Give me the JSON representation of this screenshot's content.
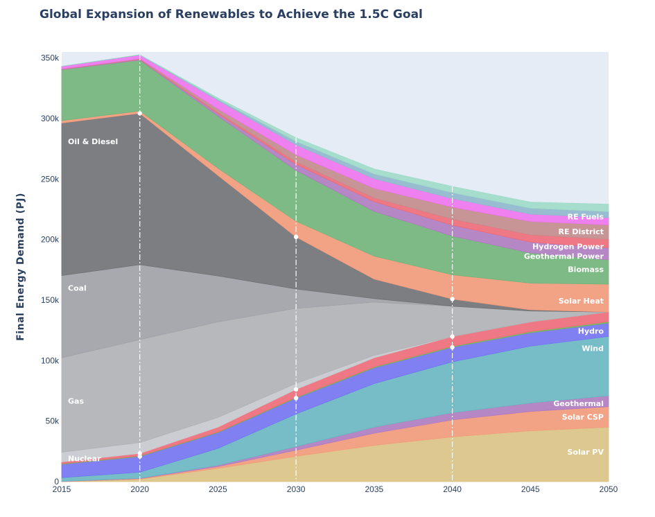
{
  "chart_data": {
    "type": "area",
    "title": "Global Expansion of Renewables to Achieve the 1.5C Goal",
    "xlabel": "",
    "ylabel": "Final Energy Demand (PJ)",
    "x": [
      2015,
      2020,
      2025,
      2030,
      2035,
      2040,
      2045,
      2050
    ],
    "ylim": [
      0,
      355000
    ],
    "xlim": [
      2015,
      2050
    ],
    "y_ticks": [
      0,
      50000,
      100000,
      150000,
      200000,
      250000,
      300000,
      350000
    ],
    "y_tick_labels": [
      "0",
      "50k",
      "100k",
      "150k",
      "200k",
      "250k",
      "300k",
      "350k"
    ],
    "x_ticks": [
      2015,
      2020,
      2025,
      2030,
      2035,
      2040,
      2045,
      2050
    ],
    "x_tick_labels": [
      "2015",
      "2020",
      "2025",
      "2030",
      "2035",
      "2040",
      "2045",
      "2050"
    ],
    "marker_years": [
      2020,
      2030,
      2040
    ],
    "stacked": true,
    "background": "#e5ecf6",
    "series": [
      {
        "name": "Solar PV",
        "color": "#dcc484",
        "values": [
          0,
          2000,
          11000,
          21000,
          30000,
          37000,
          42000,
          45000
        ]
      },
      {
        "name": "Solar CSP",
        "color": "#f39b7a",
        "values": [
          200,
          500,
          1500,
          5000,
          10000,
          14000,
          16000,
          17000
        ]
      },
      {
        "name": "Geothermal",
        "color": "#b07cc0",
        "values": [
          100,
          300,
          1000,
          3000,
          5000,
          6000,
          7000,
          9000
        ]
      },
      {
        "name": "Wind",
        "color": "#6ab8c2",
        "values": [
          3000,
          5000,
          14000,
          27000,
          36000,
          42000,
          47000,
          49000
        ]
      },
      {
        "name": "Hydro",
        "color": "#7474f2",
        "values": [
          11000,
          13000,
          13000,
          13000,
          13000,
          12000,
          11000,
          11000
        ]
      },
      {
        "name": "",
        "color": "#7ab060",
        "values": [
          500,
          500,
          500,
          700,
          800,
          900,
          1000,
          1200
        ]
      },
      {
        "name": "",
        "color": "#ee6c78",
        "values": [
          1500,
          2000,
          4000,
          6500,
          7500,
          8000,
          8000,
          8000
        ]
      },
      {
        "name": "Nuclear",
        "color": "#c8cace",
        "values": [
          8000,
          9000,
          8000,
          5000,
          2000,
          0,
          0,
          0
        ]
      },
      {
        "name": "Gas",
        "color": "#b0b2b6",
        "values": [
          78000,
          85000,
          79000,
          62000,
          44000,
          25000,
          9000,
          0
        ]
      },
      {
        "name": "Coal",
        "color": "#a0a2a6",
        "values": [
          68000,
          62000,
          38000,
          16000,
          3000,
          0,
          0,
          0
        ]
      },
      {
        "name": "Oil & Diesel",
        "color": "#707276",
        "values": [
          126000,
          125000,
          83000,
          43000,
          16000,
          6000,
          1000,
          0
        ]
      },
      {
        "name": "Solar Heat",
        "color": "#f39b7a",
        "values": [
          2000,
          2000,
          6000,
          13000,
          19000,
          20000,
          22000,
          23000
        ]
      },
      {
        "name": "Biomass",
        "color": "#72b57a",
        "values": [
          42000,
          42000,
          43000,
          42000,
          37000,
          32000,
          25000,
          20000
        ]
      },
      {
        "name": "Geothermal Power",
        "color": "#b07cc0",
        "values": [
          300,
          500,
          2000,
          5000,
          8000,
          9000,
          9000,
          10000
        ]
      },
      {
        "name": "Hydrogen Power",
        "color": "#ee6c78",
        "values": [
          200,
          300,
          1000,
          2000,
          3000,
          5000,
          6000,
          7000
        ]
      },
      {
        "name": "RE District",
        "color": "#c48c8c",
        "values": [
          300,
          400,
          3000,
          6000,
          8000,
          10000,
          11000,
          12000
        ]
      },
      {
        "name": "",
        "color": "#f074f0",
        "values": [
          2000,
          3000,
          7000,
          8000,
          8000,
          7000,
          6000,
          6000
        ]
      },
      {
        "name": "RE Fuels",
        "color": "#90b8cc",
        "values": [
          100,
          200,
          1000,
          3000,
          4000,
          5000,
          5000,
          5000
        ]
      },
      {
        "name": "",
        "color": "#a0dcc8",
        "values": [
          0,
          0,
          1000,
          3000,
          4000,
          5000,
          5000,
          6000
        ]
      }
    ]
  }
}
